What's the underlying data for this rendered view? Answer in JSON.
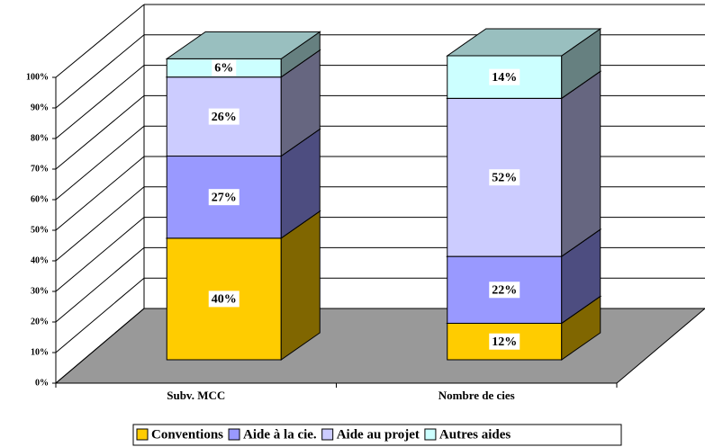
{
  "chart_data": {
    "type": "bar",
    "stacked": true,
    "categories": [
      "Subv. MCC",
      "Nombre de cies"
    ],
    "series": [
      {
        "name": "Conventions",
        "color": "#FFCC00",
        "values": [
          40,
          12
        ],
        "value_labels": [
          "40%",
          "12%"
        ]
      },
      {
        "name": "Aide à la cie.",
        "color": "#9999FF",
        "values": [
          27,
          22
        ],
        "value_labels": [
          "27%",
          "22%"
        ]
      },
      {
        "name": "Aide au projet",
        "color": "#CCCCFF",
        "values": [
          26,
          52
        ],
        "value_labels": [
          "26%",
          "52%"
        ]
      },
      {
        "name": "Autres aides",
        "color": "#CCFFFF",
        "values": [
          6,
          14
        ],
        "value_labels": [
          "6%",
          "14%"
        ]
      }
    ],
    "ylim": [
      0,
      100
    ],
    "yticks": [
      {
        "value": 0,
        "label": "0%"
      },
      {
        "value": 10,
        "label": "10%"
      },
      {
        "value": 20,
        "label": "20%"
      },
      {
        "value": 30,
        "label": "30%"
      },
      {
        "value": 40,
        "label": "40%"
      },
      {
        "value": 50,
        "label": "50%"
      },
      {
        "value": 60,
        "label": "60%"
      },
      {
        "value": 70,
        "label": "70%"
      },
      {
        "value": 80,
        "label": "80%"
      },
      {
        "value": 90,
        "label": "90%"
      },
      {
        "value": 100,
        "label": "100%"
      }
    ],
    "grid": true,
    "legend": "bottom"
  }
}
